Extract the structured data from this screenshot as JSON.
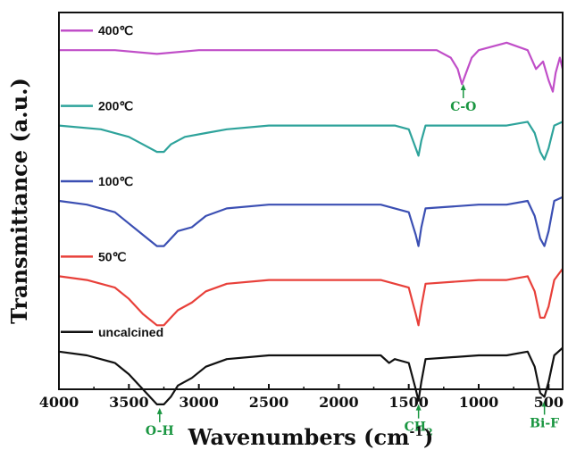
{
  "chart_data": {
    "type": "line",
    "xlabel": "Wavenumbers (cm",
    "xlabel_sup": "-1",
    "xlabel_close": ")",
    "ylabel": "Transmittance (a.u.)",
    "xlim": [
      4000,
      400
    ],
    "x_reversed": true,
    "xticks": [
      {
        "value": 4000,
        "label": "4000"
      },
      {
        "value": 3500,
        "label": "3500"
      },
      {
        "value": 3000,
        "label": "3000"
      },
      {
        "value": 2500,
        "label": "2500"
      },
      {
        "value": 2000,
        "label": "2000"
      },
      {
        "value": 1500,
        "label": "1500"
      },
      {
        "value": 1000,
        "label": "1000"
      },
      {
        "value": 500,
        "label": "500"
      }
    ],
    "grid": false,
    "legend_placement": "inline-left",
    "series": [
      {
        "name": "400℃",
        "color": "#c04ec8",
        "offset": 0.9,
        "points": [
          [
            4000,
            0.0
          ],
          [
            3600,
            0.0
          ],
          [
            3300,
            -0.01
          ],
          [
            3000,
            0.0
          ],
          [
            2500,
            0.0
          ],
          [
            2000,
            0.0
          ],
          [
            1500,
            0.0
          ],
          [
            1300,
            0.0
          ],
          [
            1200,
            -0.02
          ],
          [
            1150,
            -0.05
          ],
          [
            1120,
            -0.09
          ],
          [
            1080,
            -0.05
          ],
          [
            1050,
            -0.02
          ],
          [
            1000,
            0.0
          ],
          [
            800,
            0.02
          ],
          [
            650,
            0.0
          ],
          [
            590,
            -0.05
          ],
          [
            540,
            -0.03
          ],
          [
            500,
            -0.08
          ],
          [
            470,
            -0.11
          ],
          [
            450,
            -0.06
          ],
          [
            420,
            -0.02
          ],
          [
            400,
            -0.05
          ]
        ]
      },
      {
        "name": "200℃",
        "color": "#2ea39b",
        "offset": 0.7,
        "points": [
          [
            4000,
            0.0
          ],
          [
            3700,
            -0.01
          ],
          [
            3500,
            -0.03
          ],
          [
            3400,
            -0.05
          ],
          [
            3300,
            -0.07
          ],
          [
            3250,
            -0.07
          ],
          [
            3200,
            -0.05
          ],
          [
            3100,
            -0.03
          ],
          [
            2950,
            -0.02
          ],
          [
            2800,
            -0.01
          ],
          [
            2500,
            0.0
          ],
          [
            2000,
            0.0
          ],
          [
            1700,
            0.0
          ],
          [
            1600,
            0.0
          ],
          [
            1500,
            -0.01
          ],
          [
            1450,
            -0.06
          ],
          [
            1430,
            -0.08
          ],
          [
            1410,
            -0.04
          ],
          [
            1380,
            0.0
          ],
          [
            1000,
            0.0
          ],
          [
            800,
            0.0
          ],
          [
            650,
            0.01
          ],
          [
            600,
            -0.02
          ],
          [
            560,
            -0.07
          ],
          [
            530,
            -0.09
          ],
          [
            500,
            -0.06
          ],
          [
            460,
            0.0
          ],
          [
            400,
            0.01
          ]
        ]
      },
      {
        "name": "100℃",
        "color": "#3b4fb3",
        "offset": 0.5,
        "points": [
          [
            4000,
            0.0
          ],
          [
            3800,
            -0.01
          ],
          [
            3600,
            -0.03
          ],
          [
            3500,
            -0.06
          ],
          [
            3400,
            -0.09
          ],
          [
            3300,
            -0.12
          ],
          [
            3250,
            -0.12
          ],
          [
            3200,
            -0.1
          ],
          [
            3150,
            -0.08
          ],
          [
            3050,
            -0.07
          ],
          [
            2950,
            -0.04
          ],
          [
            2800,
            -0.02
          ],
          [
            2500,
            -0.01
          ],
          [
            2000,
            -0.01
          ],
          [
            1700,
            -0.01
          ],
          [
            1600,
            -0.02
          ],
          [
            1500,
            -0.03
          ],
          [
            1450,
            -0.09
          ],
          [
            1430,
            -0.12
          ],
          [
            1410,
            -0.07
          ],
          [
            1380,
            -0.02
          ],
          [
            1000,
            -0.01
          ],
          [
            800,
            -0.01
          ],
          [
            650,
            0.0
          ],
          [
            600,
            -0.04
          ],
          [
            560,
            -0.1
          ],
          [
            530,
            -0.12
          ],
          [
            500,
            -0.08
          ],
          [
            460,
            0.0
          ],
          [
            400,
            0.01
          ]
        ]
      },
      {
        "name": "50℃",
        "color": "#e8403a",
        "offset": 0.3,
        "points": [
          [
            4000,
            0.0
          ],
          [
            3800,
            -0.01
          ],
          [
            3600,
            -0.03
          ],
          [
            3500,
            -0.06
          ],
          [
            3400,
            -0.1
          ],
          [
            3300,
            -0.13
          ],
          [
            3250,
            -0.13
          ],
          [
            3200,
            -0.11
          ],
          [
            3150,
            -0.09
          ],
          [
            3050,
            -0.07
          ],
          [
            2950,
            -0.04
          ],
          [
            2800,
            -0.02
          ],
          [
            2500,
            -0.01
          ],
          [
            2000,
            -0.01
          ],
          [
            1700,
            -0.01
          ],
          [
            1600,
            -0.02
          ],
          [
            1500,
            -0.03
          ],
          [
            1450,
            -0.1
          ],
          [
            1430,
            -0.13
          ],
          [
            1410,
            -0.08
          ],
          [
            1380,
            -0.02
          ],
          [
            1000,
            -0.01
          ],
          [
            800,
            -0.01
          ],
          [
            650,
            0.0
          ],
          [
            600,
            -0.04
          ],
          [
            560,
            -0.11
          ],
          [
            530,
            -0.11
          ],
          [
            500,
            -0.08
          ],
          [
            460,
            -0.01
          ],
          [
            400,
            0.02
          ]
        ]
      },
      {
        "name": "uncalcined",
        "color": "#111111",
        "offset": 0.1,
        "points": [
          [
            4000,
            0.0
          ],
          [
            3800,
            -0.01
          ],
          [
            3600,
            -0.03
          ],
          [
            3500,
            -0.06
          ],
          [
            3400,
            -0.1
          ],
          [
            3300,
            -0.14
          ],
          [
            3250,
            -0.14
          ],
          [
            3200,
            -0.12
          ],
          [
            3150,
            -0.09
          ],
          [
            3050,
            -0.07
          ],
          [
            2950,
            -0.04
          ],
          [
            2800,
            -0.02
          ],
          [
            2500,
            -0.01
          ],
          [
            2000,
            -0.01
          ],
          [
            1700,
            -0.01
          ],
          [
            1640,
            -0.03
          ],
          [
            1600,
            -0.02
          ],
          [
            1500,
            -0.03
          ],
          [
            1450,
            -0.1
          ],
          [
            1430,
            -0.13
          ],
          [
            1410,
            -0.08
          ],
          [
            1380,
            -0.02
          ],
          [
            1000,
            -0.01
          ],
          [
            800,
            -0.01
          ],
          [
            650,
            0.0
          ],
          [
            600,
            -0.04
          ],
          [
            560,
            -0.11
          ],
          [
            530,
            -0.12
          ],
          [
            500,
            -0.08
          ],
          [
            460,
            -0.01
          ],
          [
            400,
            0.01
          ]
        ]
      }
    ],
    "annotations": [
      {
        "text": "O-H",
        "x": 3280,
        "series": "uncalcined"
      },
      {
        "text": "CH",
        "sub": "2",
        "x": 1430,
        "series": "uncalcined"
      },
      {
        "text": "Bi-F",
        "x": 530,
        "series": "uncalcined"
      },
      {
        "text": "C-O",
        "x": 1110,
        "series": "400℃"
      }
    ]
  }
}
